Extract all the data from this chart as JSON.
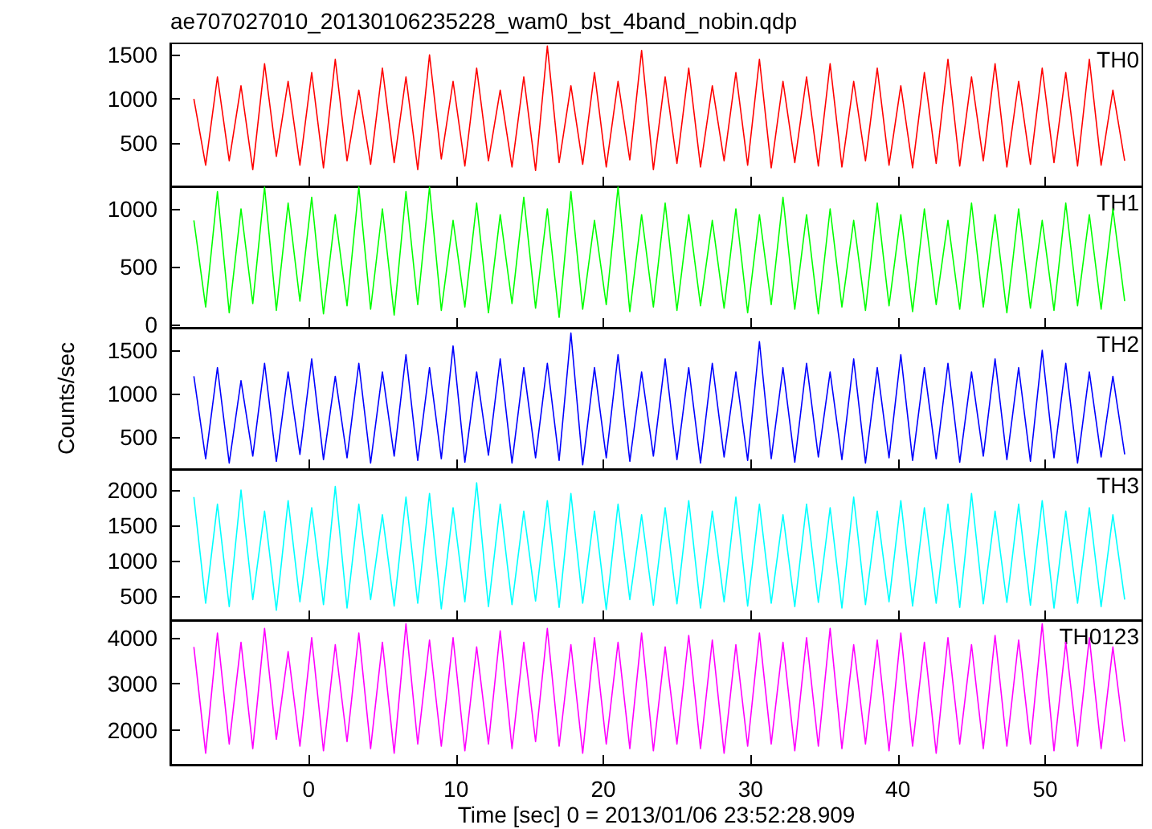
{
  "chart_data": [
    {
      "type": "line",
      "title": "ae707027010_20130106235228_wam0_bst_4band_nobin.qdp",
      "annotations": [
        "TH0"
      ],
      "tick_labels": "y",
      "xlim": [
        -9.4,
        56.6
      ],
      "xticks": [
        0,
        10,
        20,
        30,
        40,
        50
      ],
      "ylim": [
        10,
        1630
      ],
      "yticks": [
        500,
        1000,
        1500
      ],
      "marker": "none",
      "x": [
        -7.8,
        -7,
        -6.2,
        -5.4,
        -4.6,
        -3.8,
        -3,
        -2.2,
        -1.4,
        -0.6,
        0.2,
        1,
        1.8,
        2.6,
        3.4,
        4.2,
        5,
        5.8,
        6.6,
        7.4,
        8.2,
        9,
        9.8,
        10.6,
        11.4,
        12.2,
        13,
        13.8,
        14.6,
        15.4,
        16.2,
        17,
        17.8,
        18.6,
        19.4,
        20.2,
        21,
        21.8,
        22.6,
        23.4,
        24.2,
        25,
        25.8,
        26.6,
        27.4,
        28.2,
        29,
        29.8,
        30.6,
        31.4,
        32.2,
        33,
        33.8,
        34.6,
        35.4,
        36.2,
        37,
        37.8,
        38.6,
        39.4,
        40.2,
        41,
        41.8,
        42.6,
        43.4,
        44.2,
        45,
        45.8,
        46.6,
        47.4,
        48.2,
        49,
        49.8,
        50.6,
        51.4,
        52.2,
        53,
        53.8,
        54.6,
        55.4
      ],
      "color": "#ff0000",
      "values": [
        1000,
        250,
        1250,
        300,
        1150,
        200,
        1400,
        350,
        1200,
        250,
        1300,
        220,
        1450,
        300,
        1100,
        260,
        1350,
        280,
        1250,
        200,
        1500,
        320,
        1200,
        240,
        1350,
        300,
        1100,
        230,
        1250,
        190,
        1600,
        280,
        1150,
        260,
        1300,
        230,
        1200,
        310,
        1550,
        200,
        1250,
        270,
        1350,
        230,
        1150,
        300,
        1300,
        250,
        1450,
        220,
        1200,
        280,
        1250,
        240,
        1400,
        230,
        1200,
        300,
        1350,
        250,
        1150,
        220,
        1300,
        270,
        1450,
        240,
        1250,
        300,
        1400,
        230,
        1200,
        260,
        1350,
        280,
        1300,
        240,
        1450,
        250,
        1100,
        300
      ]
    },
    {
      "type": "line",
      "annotations": [
        "TH1"
      ],
      "tick_labels": "y",
      "xlim": [
        -9.4,
        56.6
      ],
      "xticks": [
        0,
        10,
        20,
        30,
        40,
        50
      ],
      "ylim": [
        -30,
        1195
      ],
      "yticks": [
        0,
        500,
        1000
      ],
      "marker": "none",
      "x": [
        -7.8,
        -7,
        -6.2,
        -5.4,
        -4.6,
        -3.8,
        -3,
        -2.2,
        -1.4,
        -0.6,
        0.2,
        1,
        1.8,
        2.6,
        3.4,
        4.2,
        5,
        5.8,
        6.6,
        7.4,
        8.2,
        9,
        9.8,
        10.6,
        11.4,
        12.2,
        13,
        13.8,
        14.6,
        15.4,
        16.2,
        17,
        17.8,
        18.6,
        19.4,
        20.2,
        21,
        21.8,
        22.6,
        23.4,
        24.2,
        25,
        25.8,
        26.6,
        27.4,
        28.2,
        29,
        29.8,
        30.6,
        31.4,
        32.2,
        33,
        33.8,
        34.6,
        35.4,
        36.2,
        37,
        37.8,
        38.6,
        39.4,
        40.2,
        41,
        41.8,
        42.6,
        43.4,
        44.2,
        45,
        45.8,
        46.6,
        47.4,
        48.2,
        49,
        49.8,
        50.6,
        51.4,
        52.2,
        53,
        53.8,
        54.6,
        55.4
      ],
      "color": "#00ff00",
      "values": [
        900,
        150,
        1150,
        100,
        1000,
        180,
        1190,
        120,
        1050,
        200,
        1100,
        90,
        950,
        160,
        1190,
        130,
        1000,
        80,
        1150,
        170,
        1190,
        120,
        900,
        150,
        1050,
        100,
        950,
        180,
        1100,
        140,
        1000,
        60,
        1150,
        130,
        900,
        170,
        1190,
        110,
        950,
        150,
        1050,
        120,
        950,
        160,
        900,
        140,
        1000,
        100,
        950,
        170,
        1100,
        130,
        950,
        90,
        1000,
        150,
        900,
        120,
        1050,
        160,
        950,
        110,
        1000,
        170,
        900,
        130,
        1050,
        150,
        950,
        100,
        1000,
        140,
        900,
        120,
        1050,
        160,
        950,
        130,
        1000,
        200
      ]
    },
    {
      "type": "line",
      "annotations": [
        "TH2"
      ],
      "ylabel": "Counts/sec",
      "tick_labels": "y",
      "xlim": [
        -9.4,
        56.6
      ],
      "xticks": [
        0,
        10,
        20,
        30,
        40,
        50
      ],
      "ylim": [
        130,
        1760
      ],
      "yticks": [
        500,
        1000,
        1500
      ],
      "marker": "none",
      "x": [
        -7.8,
        -7,
        -6.2,
        -5.4,
        -4.6,
        -3.8,
        -3,
        -2.2,
        -1.4,
        -0.6,
        0.2,
        1,
        1.8,
        2.6,
        3.4,
        4.2,
        5,
        5.8,
        6.6,
        7.4,
        8.2,
        9,
        9.8,
        10.6,
        11.4,
        12.2,
        13,
        13.8,
        14.6,
        15.4,
        16.2,
        17,
        17.8,
        18.6,
        19.4,
        20.2,
        21,
        21.8,
        22.6,
        23.4,
        24.2,
        25,
        25.8,
        26.6,
        27.4,
        28.2,
        29,
        29.8,
        30.6,
        31.4,
        32.2,
        33,
        33.8,
        34.6,
        35.4,
        36.2,
        37,
        37.8,
        38.6,
        39.4,
        40.2,
        41,
        41.8,
        42.6,
        43.4,
        44.2,
        45,
        45.8,
        46.6,
        47.4,
        48.2,
        49,
        49.8,
        50.6,
        51.4,
        52.2,
        53,
        53.8,
        54.6,
        55.4
      ],
      "color": "#0000ff",
      "values": [
        1200,
        250,
        1300,
        200,
        1150,
        280,
        1350,
        220,
        1250,
        300,
        1400,
        240,
        1200,
        260,
        1350,
        200,
        1250,
        280,
        1450,
        230,
        1300,
        250,
        1550,
        210,
        1250,
        290,
        1400,
        200,
        1300,
        260,
        1350,
        230,
        1700,
        180,
        1300,
        260,
        1450,
        220,
        1250,
        280,
        1400,
        240,
        1300,
        200,
        1350,
        270,
        1250,
        230,
        1600,
        250,
        1300,
        210,
        1350,
        270,
        1250,
        240,
        1400,
        200,
        1300,
        260,
        1450,
        230,
        1300,
        250,
        1350,
        210,
        1250,
        280,
        1400,
        240,
        1300,
        220,
        1500,
        260,
        1350,
        200,
        1250,
        270,
        1200,
        300
      ]
    },
    {
      "type": "line",
      "annotations": [
        "TH3"
      ],
      "tick_labels": "y",
      "xlim": [
        -9.4,
        56.6
      ],
      "xticks": [
        0,
        10,
        20,
        30,
        40,
        50
      ],
      "ylim": [
        160,
        2295
      ],
      "yticks": [
        500,
        1000,
        1500,
        2000
      ],
      "marker": "none",
      "x": [
        -7.8,
        -7,
        -6.2,
        -5.4,
        -4.6,
        -3.8,
        -3,
        -2.2,
        -1.4,
        -0.6,
        0.2,
        1,
        1.8,
        2.6,
        3.4,
        4.2,
        5,
        5.8,
        6.6,
        7.4,
        8.2,
        9,
        9.8,
        10.6,
        11.4,
        12.2,
        13,
        13.8,
        14.6,
        15.4,
        16.2,
        17,
        17.8,
        18.6,
        19.4,
        20.2,
        21,
        21.8,
        22.6,
        23.4,
        24.2,
        25,
        25.8,
        26.6,
        27.4,
        28.2,
        29,
        29.8,
        30.6,
        31.4,
        32.2,
        33,
        33.8,
        34.6,
        35.4,
        36.2,
        37,
        37.8,
        38.6,
        39.4,
        40.2,
        41,
        41.8,
        42.6,
        43.4,
        44.2,
        45,
        45.8,
        46.6,
        47.4,
        48.2,
        49,
        49.8,
        50.6,
        51.4,
        52.2,
        53,
        53.8,
        54.6,
        55.4
      ],
      "color": "#00ffff",
      "values": [
        1900,
        400,
        1800,
        350,
        2000,
        450,
        1700,
        300,
        1850,
        420,
        1750,
        380,
        2050,
        330,
        1800,
        450,
        1650,
        360,
        1900,
        400,
        1950,
        320,
        1750,
        420,
        2100,
        350,
        1800,
        380,
        1700,
        430,
        1850,
        340,
        1950,
        400,
        1700,
        310,
        1800,
        450,
        1650,
        370,
        1750,
        390,
        1850,
        330,
        1700,
        420,
        1900,
        360,
        1800,
        400,
        1650,
        350,
        1800,
        410,
        1750,
        330,
        1900,
        380,
        1700,
        420,
        1850,
        360,
        1750,
        400,
        1800,
        340,
        1950,
        390,
        1700,
        410,
        1800,
        370,
        1850,
        330,
        1700,
        400,
        1750,
        350,
        1650,
        450
      ]
    },
    {
      "type": "line",
      "annotations": [
        "TH0123"
      ],
      "xlabel": "Time [sec] 0 = 2013/01/06 23:52:28.909",
      "xlim": [
        -9.4,
        56.6
      ],
      "xticks": [
        0,
        10,
        20,
        30,
        40,
        50
      ],
      "ylim": [
        1250,
        4380
      ],
      "yticks": [
        2000,
        3000,
        4000
      ],
      "marker": "none",
      "x": [
        -7.8,
        -7,
        -6.2,
        -5.4,
        -4.6,
        -3.8,
        -3,
        -2.2,
        -1.4,
        -0.6,
        0.2,
        1,
        1.8,
        2.6,
        3.4,
        4.2,
        5,
        5.8,
        6.6,
        7.4,
        8.2,
        9,
        9.8,
        10.6,
        11.4,
        12.2,
        13,
        13.8,
        14.6,
        15.4,
        16.2,
        17,
        17.8,
        18.6,
        19.4,
        20.2,
        21,
        21.8,
        22.6,
        23.4,
        24.2,
        25,
        25.8,
        26.6,
        27.4,
        28.2,
        29,
        29.8,
        30.6,
        31.4,
        32.2,
        33,
        33.8,
        34.6,
        35.4,
        36.2,
        37,
        37.8,
        38.6,
        39.4,
        40.2,
        41,
        41.8,
        42.6,
        43.4,
        44.2,
        45,
        45.8,
        46.6,
        47.4,
        48.2,
        49,
        49.8,
        50.6,
        51.4,
        52.2,
        53,
        53.8,
        54.6,
        55.4
      ],
      "color": "#ff00ff",
      "values": [
        3800,
        1500,
        4100,
        1700,
        3900,
        1600,
        4200,
        1800,
        3700,
        1650,
        4000,
        1550,
        3850,
        1750,
        4100,
        1600,
        3900,
        1500,
        4300,
        1700,
        3950,
        1650,
        4000,
        1550,
        3800,
        1700,
        4150,
        1600,
        3900,
        1750,
        4200,
        1650,
        3850,
        1500,
        4000,
        1700,
        3900,
        1600,
        4100,
        1550,
        3800,
        1700,
        4050,
        1600,
        3950,
        1500,
        3850,
        1650,
        4100,
        1700,
        3900,
        1550,
        4000,
        1650,
        4200,
        1600,
        3850,
        1700,
        3950,
        1550,
        4100,
        1650,
        3900,
        1500,
        4000,
        1700,
        3850,
        1600,
        4050,
        1650,
        3950,
        1700,
        4300,
        1550,
        3900,
        1650,
        4000,
        1600,
        3800,
        1750
      ]
    }
  ]
}
